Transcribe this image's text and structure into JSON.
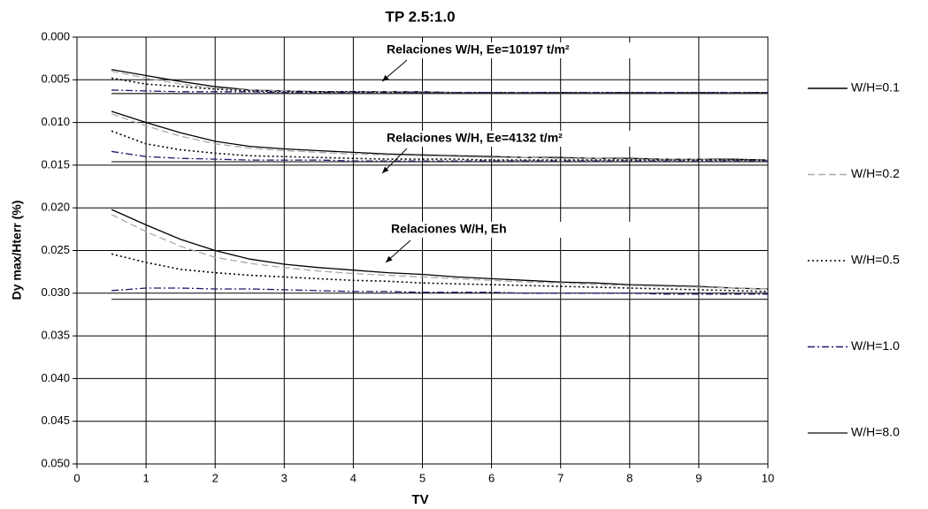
{
  "chart_data": {
    "type": "line",
    "title": "TP 2.5:1.0",
    "x_label": "TV",
    "y_label": "Dy max/Hterr (%)",
    "x": [
      0.5,
      1,
      1.5,
      2,
      2.5,
      3,
      3.5,
      4,
      4.5,
      5,
      5.5,
      6,
      6.5,
      7,
      7.5,
      8,
      8.5,
      9,
      9.5,
      10
    ],
    "xlim": [
      0,
      10
    ],
    "xticks": [
      0,
      1,
      2,
      3,
      4,
      5,
      6,
      7,
      8,
      9,
      10
    ],
    "ylim": [
      0,
      0.05
    ],
    "y_inverted": true,
    "yticks": [
      {
        "value": 0,
        "label": "0.000"
      },
      {
        "value": 0.005,
        "label": "0.005"
      },
      {
        "value": 0.01,
        "label": "0.010"
      },
      {
        "value": 0.015,
        "label": "0.015"
      },
      {
        "value": 0.02,
        "label": "0.020"
      },
      {
        "value": 0.025,
        "label": "0.025"
      },
      {
        "value": 0.03,
        "label": "0.030"
      },
      {
        "value": 0.035,
        "label": "0.035"
      },
      {
        "value": 0.04,
        "label": "0.040"
      },
      {
        "value": 0.045,
        "label": "0.045"
      },
      {
        "value": 0.05,
        "label": "0.050"
      }
    ],
    "grid": true,
    "legend": "right",
    "annotations": [
      {
        "text": "Relaciones W/H, Ee=10197 t/m²"
      },
      {
        "text": "Relaciones W/H, Ee=4132 t/m²"
      },
      {
        "text": "Relaciones W/H, Eh"
      }
    ],
    "series": [
      {
        "name": "W/H=0.1",
        "color": "#000000",
        "dash": "solid",
        "values": [
          [
            0.0038,
            0.0045,
            0.0052,
            0.0058,
            0.0062,
            0.0063,
            0.0064,
            0.0064,
            0.0064,
            0.0064,
            0.0065,
            0.0065,
            0.0065,
            0.0065,
            0.0065,
            0.0065,
            0.0065,
            0.0065,
            0.0065,
            0.0065
          ],
          [
            0.0087,
            0.01,
            0.0112,
            0.0122,
            0.0128,
            0.0131,
            0.0133,
            0.0135,
            0.0137,
            0.0138,
            0.0139,
            0.014,
            0.0141,
            0.0141,
            0.0142,
            0.0142,
            0.0143,
            0.0143,
            0.0143,
            0.0144
          ],
          [
            0.0202,
            0.022,
            0.0237,
            0.025,
            0.026,
            0.0266,
            0.027,
            0.0273,
            0.0276,
            0.0278,
            0.0281,
            0.0283,
            0.0285,
            0.0287,
            0.0288,
            0.029,
            0.0291,
            0.0292,
            0.0294,
            0.0295
          ]
        ]
      },
      {
        "name": "W/H=0.2",
        "color": "#aaaaaa",
        "dash": "dashed",
        "values": [
          [
            0.004,
            0.0048,
            0.0055,
            0.006,
            0.0062,
            0.0063,
            0.0064,
            0.0064,
            0.0064,
            0.0064,
            0.0065,
            0.0065,
            0.0065,
            0.0065,
            0.0065,
            0.0065,
            0.0065,
            0.0065,
            0.0065,
            0.0065
          ],
          [
            0.009,
            0.0104,
            0.0116,
            0.0125,
            0.013,
            0.0133,
            0.0135,
            0.0137,
            0.0138,
            0.0139,
            0.014,
            0.0141,
            0.0141,
            0.0142,
            0.0142,
            0.0143,
            0.0143,
            0.0143,
            0.0144,
            0.0144
          ],
          [
            0.0208,
            0.0228,
            0.0245,
            0.0258,
            0.0265,
            0.027,
            0.0274,
            0.0277,
            0.0279,
            0.0281,
            0.0283,
            0.0285,
            0.0287,
            0.0288,
            0.029,
            0.0291,
            0.0292,
            0.0293,
            0.0294,
            0.0295
          ]
        ]
      },
      {
        "name": "W/H=0.5",
        "color": "#000000",
        "dash": "dotted",
        "values": [
          [
            0.0048,
            0.0055,
            0.0058,
            0.0061,
            0.0063,
            0.0064,
            0.0064,
            0.0064,
            0.0065,
            0.0065,
            0.0065,
            0.0065,
            0.0065,
            0.0065,
            0.0065,
            0.0065,
            0.0065,
            0.0065,
            0.0065,
            0.0065
          ],
          [
            0.011,
            0.0125,
            0.0132,
            0.0136,
            0.0139,
            0.014,
            0.0141,
            0.0142,
            0.0143,
            0.0143,
            0.0143,
            0.0144,
            0.0144,
            0.0144,
            0.0144,
            0.0144,
            0.0144,
            0.0144,
            0.0144,
            0.0144
          ],
          [
            0.0254,
            0.0264,
            0.0272,
            0.0276,
            0.0279,
            0.0281,
            0.0283,
            0.0285,
            0.0286,
            0.0288,
            0.0289,
            0.029,
            0.0291,
            0.0292,
            0.0293,
            0.0294,
            0.0295,
            0.0296,
            0.0297,
            0.0298
          ]
        ]
      },
      {
        "name": "W/H=1.0",
        "color": "#1a1a6e",
        "dash": "dashdot",
        "values": [
          [
            0.0062,
            0.0063,
            0.0064,
            0.0064,
            0.0064,
            0.0065,
            0.0065,
            0.0065,
            0.0065,
            0.0065,
            0.0065,
            0.0065,
            0.0065,
            0.0065,
            0.0065,
            0.0065,
            0.0065,
            0.0065,
            0.0065,
            0.0065
          ],
          [
            0.0134,
            0.014,
            0.0142,
            0.0143,
            0.0144,
            0.0144,
            0.0144,
            0.0145,
            0.0145,
            0.0145,
            0.0145,
            0.0145,
            0.0145,
            0.0145,
            0.0145,
            0.0145,
            0.0145,
            0.0145,
            0.0145,
            0.0145
          ],
          [
            0.0297,
            0.0294,
            0.0294,
            0.0295,
            0.0295,
            0.0296,
            0.0297,
            0.0298,
            0.0298,
            0.0299,
            0.0299,
            0.0299,
            0.03,
            0.03,
            0.03,
            0.03,
            0.0301,
            0.0301,
            0.0301,
            0.0301
          ]
        ]
      },
      {
        "name": "W/H=8.0",
        "color": "#333333",
        "dash": "solid",
        "values": [
          [
            0.0066,
            0.0066,
            0.0066,
            0.0066,
            0.0066,
            0.0066,
            0.0066,
            0.0066,
            0.0066,
            0.0066,
            0.0066,
            0.0066,
            0.0066,
            0.0066,
            0.0066,
            0.0066,
            0.0066,
            0.0066,
            0.0066,
            0.0066
          ],
          [
            0.0146,
            0.0146,
            0.0146,
            0.0146,
            0.0146,
            0.0146,
            0.0146,
            0.0146,
            0.0146,
            0.0146,
            0.0146,
            0.0146,
            0.0146,
            0.0146,
            0.0146,
            0.0146,
            0.0146,
            0.0146,
            0.0146,
            0.0146
          ],
          [
            0.0307,
            0.0307,
            0.0307,
            0.0307,
            0.0307,
            0.0307,
            0.0307,
            0.0307,
            0.0307,
            0.0307,
            0.0307,
            0.0307,
            0.0307,
            0.0307,
            0.0307,
            0.0307,
            0.0307,
            0.0307,
            0.0307,
            0.0307
          ]
        ]
      }
    ]
  }
}
